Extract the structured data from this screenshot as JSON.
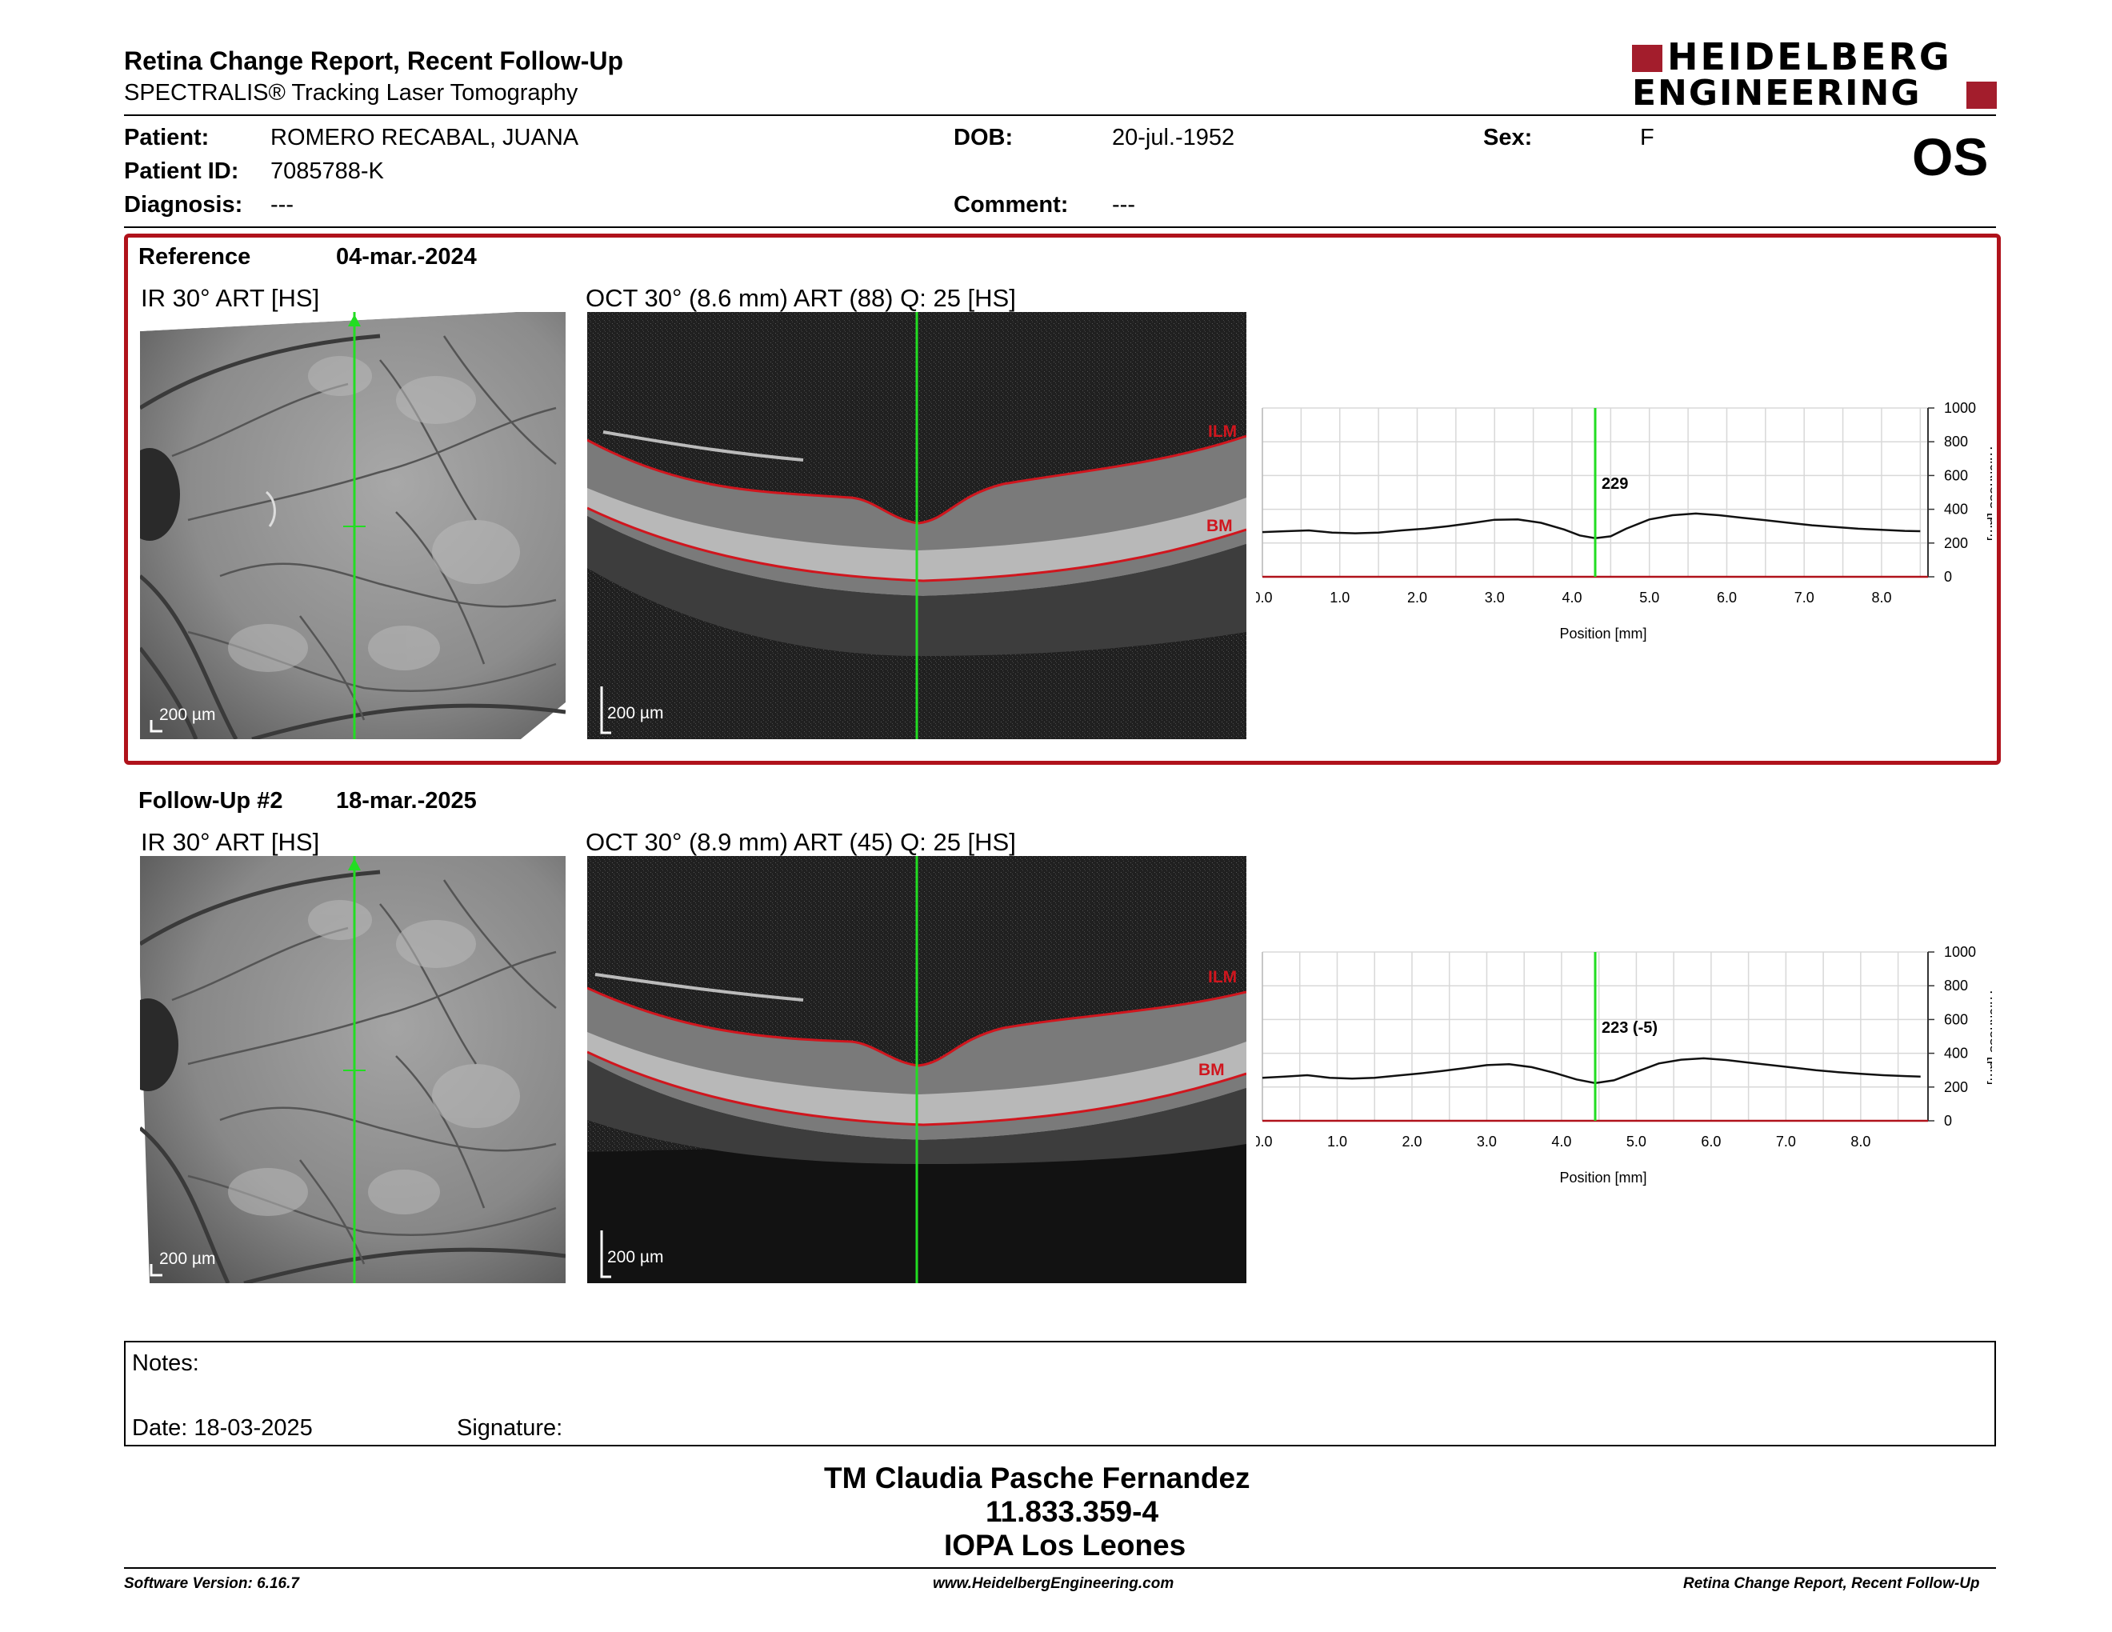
{
  "header": {
    "title": "Retina Change Report, Recent Follow-Up",
    "subtitle": "SPECTRALIS® Tracking Laser Tomography",
    "logo_line1": "HEIDELBERG",
    "logo_line2": "ENGINEERING",
    "eye": "OS"
  },
  "patient": {
    "name_label": "Patient:",
    "name": "ROMERO RECABAL, JUANA",
    "id_label": "Patient ID:",
    "id": "7085788-K",
    "diagnosis_label": "Diagnosis:",
    "diagnosis": "---",
    "dob_label": "DOB:",
    "dob": "20-jul.-1952",
    "comment_label": "Comment:",
    "comment": "---",
    "sex_label": "Sex:",
    "sex": "F"
  },
  "colors": {
    "accent": "#b0121b",
    "scan_line": "#22dd22",
    "layer_line": "#d0161e"
  },
  "reference": {
    "label": "Reference",
    "date": "04-mar.-2024",
    "ir_title": "IR 30° ART [HS]",
    "oct_title": "OCT 30° (8.6 mm) ART (88) Q: 25 [HS]",
    "ir_scale": "200 µm",
    "oct_scale": "200 µm",
    "ilm": "ILM",
    "bm": "BM"
  },
  "followup": {
    "label": "Follow-Up #2",
    "date": "18-mar.-2025",
    "ir_title": "IR 30° ART [HS]",
    "oct_title": "OCT 30° (8.9 mm) ART (45) Q: 25 [HS]",
    "ir_scale": "200 µm",
    "oct_scale": "200 µm",
    "ilm": "ILM",
    "bm": "BM"
  },
  "chart_data": [
    {
      "type": "line",
      "xlabel": "Position [mm]",
      "ylabel": "Thickness [µm]",
      "xlim": [
        0,
        8.6
      ],
      "ylim": [
        0,
        1000
      ],
      "x_ticks": [
        "0.0",
        "1.0",
        "2.0",
        "3.0",
        "4.0",
        "5.0",
        "6.0",
        "7.0",
        "8.0"
      ],
      "y_ticks": [
        "0",
        "200",
        "400",
        "600",
        "800",
        "1000"
      ],
      "cursor_x": 4.3,
      "cursor_label": "229",
      "series": [
        {
          "x": [
            0,
            0.3,
            0.6,
            0.9,
            1.2,
            1.5,
            1.8,
            2.1,
            2.4,
            2.7,
            3.0,
            3.3,
            3.6,
            3.9,
            4.1,
            4.3,
            4.5,
            4.7,
            5.0,
            5.3,
            5.6,
            5.9,
            6.2,
            6.5,
            6.8,
            7.1,
            7.4,
            7.7,
            8.0,
            8.3,
            8.5
          ],
          "y": [
            265,
            270,
            275,
            262,
            258,
            262,
            275,
            285,
            300,
            318,
            338,
            340,
            320,
            280,
            245,
            229,
            240,
            285,
            340,
            365,
            375,
            365,
            350,
            335,
            320,
            305,
            295,
            285,
            278,
            272,
            270
          ]
        }
      ]
    },
    {
      "type": "line",
      "xlabel": "Position [mm]",
      "ylabel": "Thickness [µm]",
      "xlim": [
        0,
        8.9
      ],
      "ylim": [
        0,
        1000
      ],
      "x_ticks": [
        "0.0",
        "1.0",
        "2.0",
        "3.0",
        "4.0",
        "5.0",
        "6.0",
        "7.0",
        "8.0"
      ],
      "y_ticks": [
        "0",
        "200",
        "400",
        "600",
        "800",
        "1000"
      ],
      "cursor_x": 4.45,
      "cursor_label": "223 (-5)",
      "series": [
        {
          "x": [
            0,
            0.3,
            0.6,
            0.9,
            1.2,
            1.5,
            1.8,
            2.1,
            2.4,
            2.7,
            3.0,
            3.3,
            3.6,
            3.9,
            4.2,
            4.45,
            4.7,
            5.0,
            5.3,
            5.6,
            5.9,
            6.2,
            6.5,
            6.8,
            7.1,
            7.4,
            7.7,
            8.0,
            8.3,
            8.6,
            8.8
          ],
          "y": [
            255,
            262,
            270,
            255,
            250,
            255,
            268,
            280,
            295,
            312,
            330,
            335,
            318,
            285,
            245,
            223,
            240,
            290,
            340,
            362,
            370,
            360,
            345,
            330,
            315,
            300,
            288,
            278,
            270,
            265,
            262
          ]
        }
      ]
    }
  ],
  "notes": {
    "notes_label": "Notes:",
    "date_label": "Date: 18-03-2025",
    "signature_label": "Signature:"
  },
  "signatory": {
    "name": "TM Claudia Pasche Fernandez",
    "rut": "11.833.359-4",
    "institution": "IOPA Los Leones"
  },
  "footer": {
    "software": "Software Version: 6.16.7",
    "website": "www.HeidelbergEngineering.com",
    "report_name": "Retina Change Report, Recent Follow-Up"
  }
}
